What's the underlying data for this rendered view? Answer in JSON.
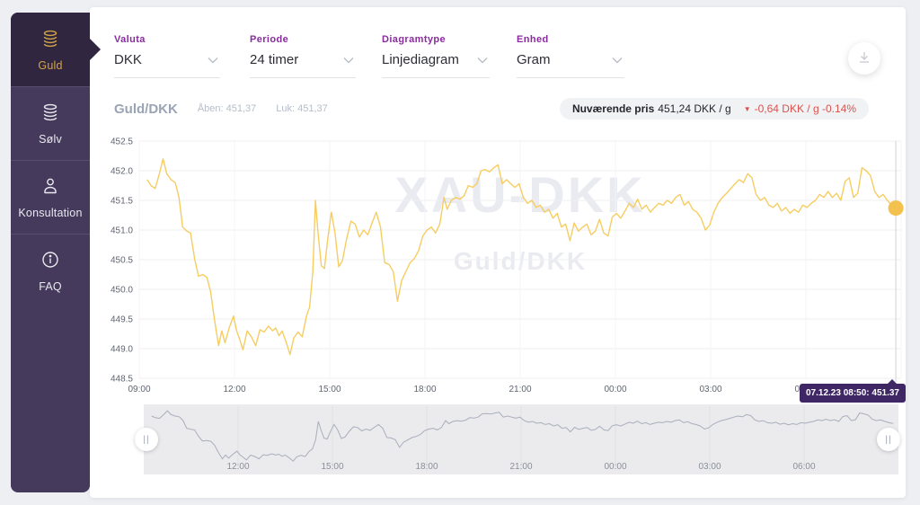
{
  "sidebar": {
    "items": [
      {
        "label": "Guld",
        "icon": "gold-coins",
        "active": true
      },
      {
        "label": "Sølv",
        "icon": "silver-coins",
        "active": false
      },
      {
        "label": "Konsultation",
        "icon": "person",
        "active": false
      },
      {
        "label": "FAQ",
        "icon": "info",
        "active": false
      }
    ]
  },
  "controls": [
    {
      "label": "Valuta",
      "value": "DKK"
    },
    {
      "label": "Periode",
      "value": "24 timer"
    },
    {
      "label": "Diagramtype",
      "value": "Linjediagram"
    },
    {
      "label": "Enhed",
      "value": "Gram"
    }
  ],
  "header": {
    "title": "Guld/DKK",
    "open": "Åben: 451,37",
    "close": "Luk: 451,37",
    "price_pill": {
      "label": "Nuværende pris",
      "value": "451,24 DKK / g",
      "change": "-0,64 DKK / g -0.14%",
      "direction": "down"
    }
  },
  "icons": {
    "down_triangle": "▼",
    "handle_glyph": "||"
  },
  "tooltip": {
    "text": "07.12.23 08:50: 451.37"
  },
  "watermark": {
    "line1": "XAU-DKK",
    "line2": "Guld/DKK"
  },
  "colors": {
    "page_bg": "#edeff2",
    "card_bg": "#ffffff",
    "sidebar_bg": "#453a5c",
    "sidebar_active_bg": "#31263f",
    "gold_text": "#d3a347",
    "silver_text": "#e9e9f0",
    "label_purple": "#8a2b9f",
    "value_text": "#2d2d36",
    "underline": "#e1e2e6",
    "chevron": "#b9bdc7",
    "title_gray": "#9aa4b4",
    "subtle_gray": "#b6bdc9",
    "pill_bg": "#f1f2f4",
    "pill_text": "#26262e",
    "red": "#d9534f",
    "axis_text": "#5f6570",
    "grid": "#efeff2",
    "vgrid": "#f4f4f7",
    "line_gold": "#f6cd60",
    "dot_gold": "#f2c14e",
    "watermark": "#e9ebf1",
    "crosshair": "#d9dade",
    "tooltip_bg": "#3f2766",
    "nav_bg": "#ebebed",
    "nav_line": "#a9aebc",
    "nav_grid": "#dfe0e4",
    "nav_label": "#8a8f99",
    "handle_glyph": "#9aa0aa"
  },
  "chart_data": {
    "type": "line",
    "title": "Guld/DKK",
    "x_unit": "minutes from 09:00",
    "x_range_minutes": 1440,
    "ylim": [
      448.5,
      452.5
    ],
    "y_ticks": [
      452.5,
      452.0,
      451.5,
      451.0,
      450.5,
      450.0,
      449.5,
      449.0,
      448.5
    ],
    "x_ticks": [
      {
        "t": 0,
        "label": "09:00"
      },
      {
        "t": 180,
        "label": "12:00"
      },
      {
        "t": 360,
        "label": "15:00"
      },
      {
        "t": 540,
        "label": "18:00"
      },
      {
        "t": 720,
        "label": "21:00"
      },
      {
        "t": 900,
        "label": "00:00"
      },
      {
        "t": 1080,
        "label": "03:00"
      },
      {
        "t": 1260,
        "label": "06:00"
      },
      {
        "t": 1440,
        "label": ""
      }
    ],
    "grid": true,
    "legend": "none",
    "last_point": {
      "t": 1430,
      "label": "07.12.23 08:50",
      "value": 451.37
    },
    "navigator": {
      "shows": "same series, full range",
      "labels_from_ticks": true
    },
    "series": [
      {
        "name": "Guld/DKK",
        "points": [
          [
            15,
            451.85
          ],
          [
            22,
            451.75
          ],
          [
            30,
            451.7
          ],
          [
            38,
            451.95
          ],
          [
            45,
            452.2
          ],
          [
            52,
            451.95
          ],
          [
            60,
            451.85
          ],
          [
            68,
            451.8
          ],
          [
            75,
            451.55
          ],
          [
            82,
            451.05
          ],
          [
            90,
            450.98
          ],
          [
            97,
            450.95
          ],
          [
            105,
            450.5
          ],
          [
            112,
            450.22
          ],
          [
            120,
            450.25
          ],
          [
            128,
            450.2
          ],
          [
            135,
            449.95
          ],
          [
            142,
            449.5
          ],
          [
            150,
            449.05
          ],
          [
            156,
            449.3
          ],
          [
            162,
            449.1
          ],
          [
            170,
            449.35
          ],
          [
            178,
            449.55
          ],
          [
            184,
            449.3
          ],
          [
            190,
            449.15
          ],
          [
            196,
            448.98
          ],
          [
            204,
            449.3
          ],
          [
            212,
            449.2
          ],
          [
            220,
            449.05
          ],
          [
            228,
            449.32
          ],
          [
            236,
            449.28
          ],
          [
            244,
            449.38
          ],
          [
            252,
            449.3
          ],
          [
            258,
            449.35
          ],
          [
            264,
            449.22
          ],
          [
            270,
            449.3
          ],
          [
            278,
            449.1
          ],
          [
            285,
            448.9
          ],
          [
            292,
            449.18
          ],
          [
            300,
            449.28
          ],
          [
            308,
            449.2
          ],
          [
            316,
            449.55
          ],
          [
            322,
            449.7
          ],
          [
            328,
            450.3
          ],
          [
            333,
            451.5
          ],
          [
            338,
            450.95
          ],
          [
            344,
            450.4
          ],
          [
            350,
            450.35
          ],
          [
            357,
            450.9
          ],
          [
            363,
            451.3
          ],
          [
            370,
            450.95
          ],
          [
            377,
            450.38
          ],
          [
            384,
            450.48
          ],
          [
            392,
            450.85
          ],
          [
            400,
            451.15
          ],
          [
            408,
            451.1
          ],
          [
            416,
            450.88
          ],
          [
            424,
            451.0
          ],
          [
            432,
            450.92
          ],
          [
            440,
            451.12
          ],
          [
            448,
            451.3
          ],
          [
            456,
            451.05
          ],
          [
            464,
            450.45
          ],
          [
            472,
            450.42
          ],
          [
            480,
            450.3
          ],
          [
            488,
            449.8
          ],
          [
            496,
            450.15
          ],
          [
            504,
            450.3
          ],
          [
            512,
            450.45
          ],
          [
            520,
            450.52
          ],
          [
            528,
            450.65
          ],
          [
            536,
            450.9
          ],
          [
            544,
            451.0
          ],
          [
            552,
            451.05
          ],
          [
            560,
            450.95
          ],
          [
            568,
            451.1
          ],
          [
            576,
            451.55
          ],
          [
            582,
            451.35
          ],
          [
            590,
            451.5
          ],
          [
            598,
            451.55
          ],
          [
            606,
            451.52
          ],
          [
            614,
            451.58
          ],
          [
            622,
            451.75
          ],
          [
            630,
            451.72
          ],
          [
            638,
            451.78
          ],
          [
            646,
            452.0
          ],
          [
            654,
            452.02
          ],
          [
            662,
            451.98
          ],
          [
            670,
            452.05
          ],
          [
            678,
            452.1
          ],
          [
            686,
            451.78
          ],
          [
            694,
            451.85
          ],
          [
            702,
            451.78
          ],
          [
            710,
            451.72
          ],
          [
            718,
            451.78
          ],
          [
            726,
            451.55
          ],
          [
            734,
            451.45
          ],
          [
            742,
            451.5
          ],
          [
            750,
            451.38
          ],
          [
            758,
            451.42
          ],
          [
            766,
            451.3
          ],
          [
            774,
            451.35
          ],
          [
            782,
            451.2
          ],
          [
            790,
            451.28
          ],
          [
            798,
            451.05
          ],
          [
            806,
            451.1
          ],
          [
            814,
            450.82
          ],
          [
            822,
            451.12
          ],
          [
            830,
            450.98
          ],
          [
            838,
            451.05
          ],
          [
            846,
            451.1
          ],
          [
            854,
            450.92
          ],
          [
            862,
            450.98
          ],
          [
            870,
            451.18
          ],
          [
            878,
            450.95
          ],
          [
            886,
            450.9
          ],
          [
            894,
            451.22
          ],
          [
            902,
            451.28
          ],
          [
            910,
            451.2
          ],
          [
            918,
            451.32
          ],
          [
            926,
            451.45
          ],
          [
            934,
            451.38
          ],
          [
            942,
            451.52
          ],
          [
            950,
            451.35
          ],
          [
            958,
            451.42
          ],
          [
            966,
            451.3
          ],
          [
            974,
            451.38
          ],
          [
            982,
            451.45
          ],
          [
            990,
            451.42
          ],
          [
            998,
            451.5
          ],
          [
            1006,
            451.45
          ],
          [
            1014,
            451.55
          ],
          [
            1022,
            451.6
          ],
          [
            1030,
            451.42
          ],
          [
            1038,
            451.48
          ],
          [
            1046,
            451.35
          ],
          [
            1054,
            451.3
          ],
          [
            1062,
            451.2
          ],
          [
            1070,
            451.0
          ],
          [
            1078,
            451.08
          ],
          [
            1086,
            451.3
          ],
          [
            1094,
            451.45
          ],
          [
            1102,
            451.55
          ],
          [
            1110,
            451.62
          ],
          [
            1118,
            451.7
          ],
          [
            1126,
            451.78
          ],
          [
            1134,
            451.85
          ],
          [
            1142,
            451.8
          ],
          [
            1150,
            451.95
          ],
          [
            1158,
            451.88
          ],
          [
            1166,
            451.6
          ],
          [
            1174,
            451.5
          ],
          [
            1182,
            451.55
          ],
          [
            1190,
            451.42
          ],
          [
            1198,
            451.38
          ],
          [
            1206,
            451.45
          ],
          [
            1214,
            451.32
          ],
          [
            1222,
            451.38
          ],
          [
            1230,
            451.28
          ],
          [
            1238,
            451.35
          ],
          [
            1246,
            451.3
          ],
          [
            1254,
            451.42
          ],
          [
            1262,
            451.38
          ],
          [
            1270,
            451.45
          ],
          [
            1278,
            451.5
          ],
          [
            1286,
            451.6
          ],
          [
            1294,
            451.55
          ],
          [
            1302,
            451.65
          ],
          [
            1310,
            451.55
          ],
          [
            1318,
            451.62
          ],
          [
            1326,
            451.5
          ],
          [
            1334,
            451.82
          ],
          [
            1342,
            451.88
          ],
          [
            1350,
            451.55
          ],
          [
            1358,
            451.62
          ],
          [
            1366,
            452.05
          ],
          [
            1374,
            452.0
          ],
          [
            1382,
            451.92
          ],
          [
            1390,
            451.65
          ],
          [
            1398,
            451.55
          ],
          [
            1406,
            451.6
          ],
          [
            1414,
            451.5
          ],
          [
            1422,
            451.42
          ],
          [
            1430,
            451.37
          ]
        ]
      }
    ]
  }
}
